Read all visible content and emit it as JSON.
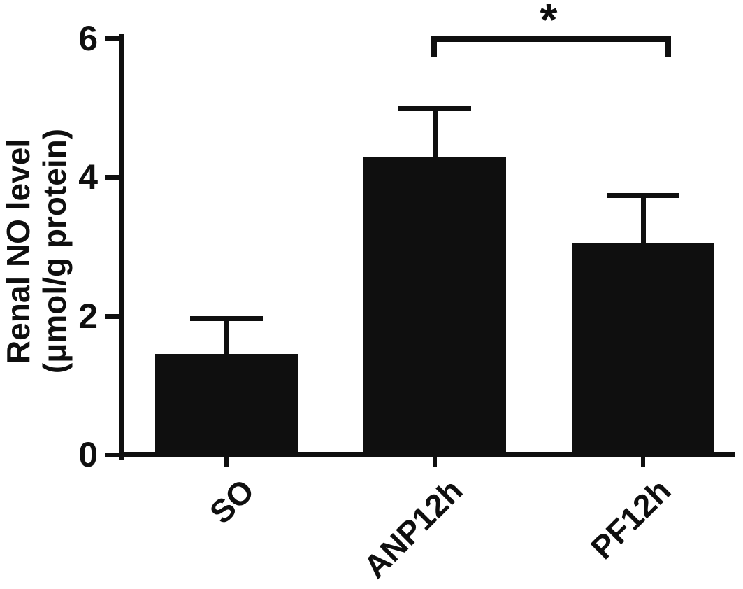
{
  "chart_data": {
    "type": "bar",
    "title": "",
    "categories": [
      "SO",
      "ANP12h",
      "PF12h"
    ],
    "values": [
      1.45,
      4.3,
      3.05
    ],
    "errors": [
      0.55,
      0.72,
      0.72
    ],
    "error_direction": "up",
    "ylabel_line1": "Renal NO level",
    "ylabel_line2": "(μmol/g protein)",
    "xlabel": "",
    "ylim": [
      0,
      6
    ],
    "yticks": [
      0,
      2,
      4,
      6
    ],
    "bar_color": "#0f0f0f",
    "grid": false,
    "legend": "none",
    "significance": {
      "from": "ANP12h",
      "to": "PF12h",
      "label": "*"
    }
  }
}
